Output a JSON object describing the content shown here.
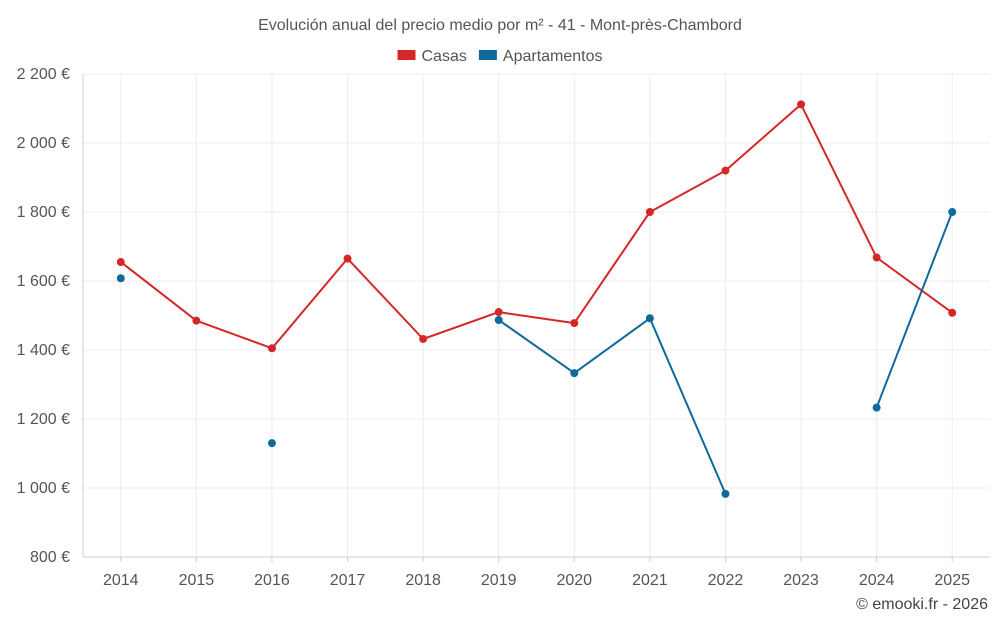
{
  "chart_data": {
    "type": "line",
    "title": "Evolución anual del precio medio por m² - 41 - Mont-près-Chambord",
    "categories": [
      "2014",
      "2015",
      "2016",
      "2017",
      "2018",
      "2019",
      "2020",
      "2021",
      "2022",
      "2023",
      "2024",
      "2025"
    ],
    "ylim": [
      800,
      2200
    ],
    "yticks": [
      800,
      1000,
      1200,
      1400,
      1600,
      1800,
      2000,
      2200
    ],
    "ytick_labels": [
      "800 €",
      "1 000 €",
      "1 200 €",
      "1 400 €",
      "1 600 €",
      "1 800 €",
      "2 000 €",
      "2 200 €"
    ],
    "grid": true,
    "legend_position": "top-center",
    "series": [
      {
        "name": "Casas",
        "color": "#d62728",
        "values": [
          1655,
          1485,
          1405,
          1665,
          1432,
          1510,
          1478,
          1800,
          1920,
          2112,
          1668,
          1508
        ]
      },
      {
        "name": "Apartamentos",
        "color": "#0f6a9c",
        "values": [
          1608,
          null,
          1130,
          null,
          null,
          1487,
          1333,
          1492,
          983,
          null,
          1233,
          1800
        ]
      }
    ]
  },
  "credit": "© emooki.fr - 2026"
}
